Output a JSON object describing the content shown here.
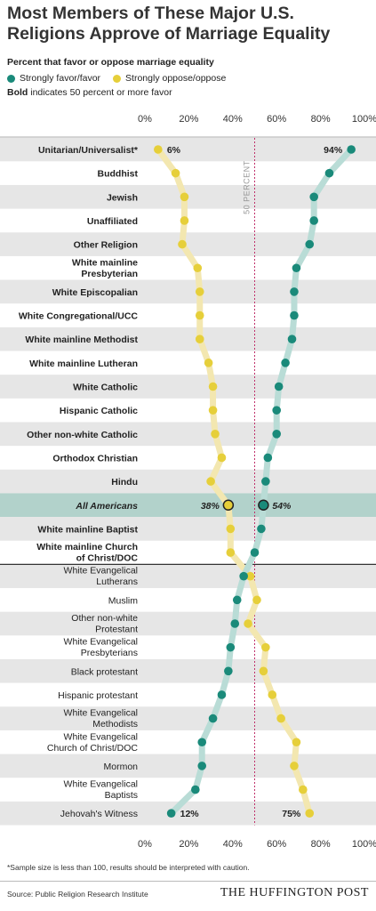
{
  "title": "Most Members of These Major U.S. Religions Approve of Marriage Equality",
  "subtitle": "Percent that favor or oppose marriage equality",
  "legend": {
    "favor_label": "Strongly favor/favor",
    "oppose_label": "Strongly oppose/oppose"
  },
  "note": {
    "bold": "Bold",
    "text": " indicates 50 percent or more favor"
  },
  "colors": {
    "favor": "#1a8a7a",
    "oppose": "#e6cf3a",
    "favor_line": "#b9dcd6",
    "oppose_line": "#f3e7b0",
    "row_band": "#e6e6e6",
    "highlight": "#b2d2cb",
    "ref_line": "#c0306a"
  },
  "chart_data": {
    "type": "scatter",
    "x_axis": {
      "range": [
        0,
        100
      ],
      "ticks": [
        "0%",
        "20%",
        "40%",
        "60%",
        "80%",
        "100%"
      ]
    },
    "reference_line": {
      "value": 50,
      "label": "50 PERCENT"
    },
    "series": [
      {
        "name": "Strongly favor/favor",
        "key": "favor"
      },
      {
        "name": "Strongly oppose/oppose",
        "key": "oppose"
      }
    ],
    "categories": [
      {
        "label": "Unitarian/Universalist*",
        "bold": true,
        "favor": 94,
        "oppose": 6,
        "label_favor": "94%",
        "label_oppose": "6%"
      },
      {
        "label": "Buddhist",
        "bold": true,
        "favor": 84,
        "oppose": 14
      },
      {
        "label": "Jewish",
        "bold": true,
        "favor": 77,
        "oppose": 18
      },
      {
        "label": "Unaffiliated",
        "bold": true,
        "favor": 77,
        "oppose": 18
      },
      {
        "label": "Other Religion",
        "bold": true,
        "favor": 75,
        "oppose": 17
      },
      {
        "label": "White mainline Presbyterian",
        "bold": true,
        "favor": 69,
        "oppose": 24
      },
      {
        "label": "White Episcopalian",
        "bold": true,
        "favor": 68,
        "oppose": 25
      },
      {
        "label": "White Congregational/UCC",
        "bold": true,
        "favor": 68,
        "oppose": 25
      },
      {
        "label": "White mainline Methodist",
        "bold": true,
        "favor": 67,
        "oppose": 25
      },
      {
        "label": "White mainline Lutheran",
        "bold": true,
        "favor": 64,
        "oppose": 29
      },
      {
        "label": "White Catholic",
        "bold": true,
        "favor": 61,
        "oppose": 31
      },
      {
        "label": "Hispanic Catholic",
        "bold": true,
        "favor": 60,
        "oppose": 31
      },
      {
        "label": "Other non-white Catholic",
        "bold": true,
        "favor": 60,
        "oppose": 32
      },
      {
        "label": "Orthodox Christian",
        "bold": true,
        "favor": 56,
        "oppose": 35
      },
      {
        "label": "Hindu",
        "bold": true,
        "favor": 55,
        "oppose": 30
      },
      {
        "label": "All Americans",
        "bold": true,
        "italic": true,
        "highlight": true,
        "favor": 54,
        "oppose": 38,
        "label_favor": "54%",
        "label_oppose": "38%"
      },
      {
        "label": "White mainline Baptist",
        "bold": true,
        "favor": 53,
        "oppose": 39
      },
      {
        "label": "White mainline Church of Christ/DOC",
        "bold": true,
        "favor": 50,
        "oppose": 39
      },
      {
        "label": "White Evangelical Lutherans",
        "bold": false,
        "favor": 45,
        "oppose": 48
      },
      {
        "label": "Muslim",
        "bold": false,
        "favor": 42,
        "oppose": 51
      },
      {
        "label": "Other non-white Protestant",
        "bold": false,
        "favor": 41,
        "oppose": 47
      },
      {
        "label": "White Evangelical Presbyterians",
        "bold": false,
        "favor": 39,
        "oppose": 55
      },
      {
        "label": "Black protestant",
        "bold": false,
        "favor": 38,
        "oppose": 54
      },
      {
        "label": "Hispanic protestant",
        "bold": false,
        "favor": 35,
        "oppose": 58
      },
      {
        "label": "White Evangelical Methodists",
        "bold": false,
        "favor": 31,
        "oppose": 62
      },
      {
        "label": "White Evangelical Church of Christ/DOC",
        "bold": false,
        "favor": 26,
        "oppose": 69
      },
      {
        "label": "Mormon",
        "bold": false,
        "favor": 26,
        "oppose": 68
      },
      {
        "label": "White Evangelical Baptists",
        "bold": false,
        "favor": 23,
        "oppose": 72
      },
      {
        "label": "Jehovah's Witness",
        "bold": false,
        "favor": 12,
        "oppose": 75,
        "label_favor": "12%",
        "label_oppose": "75%"
      }
    ]
  },
  "footnote": "*Sample size is less than 100, results should be interpreted with caution.",
  "source": "Source: Public Religion Research Institute",
  "brand": "THE HUFFINGTON POST"
}
